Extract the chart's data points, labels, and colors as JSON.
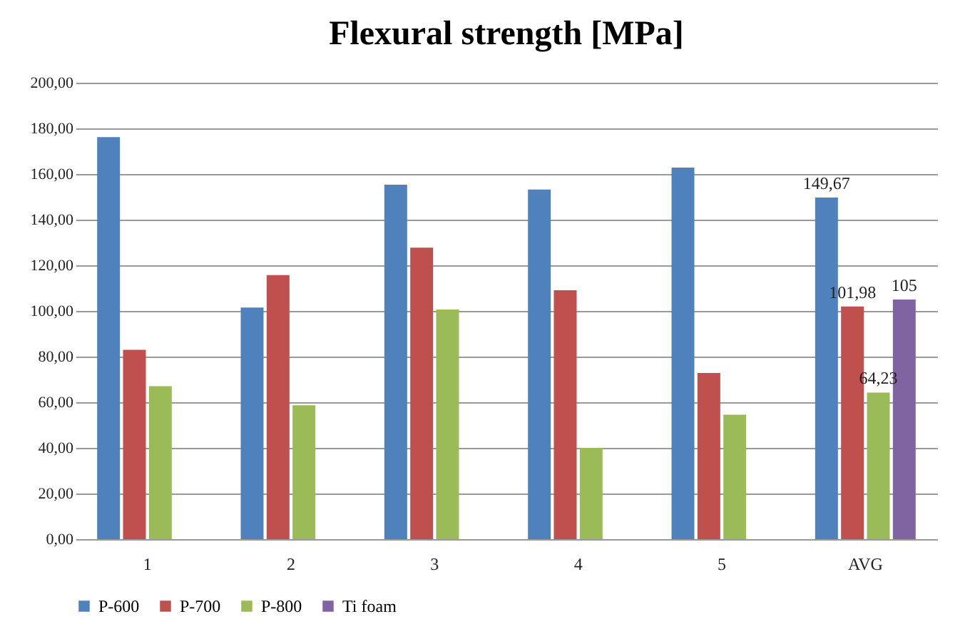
{
  "chart_data": {
    "type": "bar",
    "title": "Flexural strength [MPa]",
    "categories": [
      "1",
      "2",
      "3",
      "4",
      "5",
      "AVG"
    ],
    "series": [
      {
        "name": "P-600",
        "color": "#4f81bd",
        "values": [
          176.2,
          101.5,
          155.3,
          153.2,
          162.8,
          149.67
        ],
        "value_labels": [
          null,
          null,
          null,
          null,
          null,
          "149,67"
        ]
      },
      {
        "name": "P-700",
        "color": "#c0504d",
        "values": [
          83,
          115.7,
          127.7,
          109.1,
          72.8,
          101.98
        ],
        "value_labels": [
          null,
          null,
          null,
          null,
          null,
          "101,98"
        ]
      },
      {
        "name": "P-800",
        "color": "#9bbb59",
        "values": [
          67,
          58.7,
          100.6,
          40,
          54.5,
          64.23
        ],
        "value_labels": [
          null,
          null,
          null,
          null,
          null,
          "64,23"
        ]
      },
      {
        "name": "Ti foam",
        "color": "#8064a2",
        "values": [
          null,
          null,
          null,
          null,
          null,
          105
        ],
        "value_labels": [
          null,
          null,
          null,
          null,
          null,
          "105"
        ]
      }
    ],
    "ylim": [
      0,
      200
    ],
    "yticks": [
      {
        "value": 0,
        "label": "0,00"
      },
      {
        "value": 20,
        "label": "20,00"
      },
      {
        "value": 40,
        "label": "40,00"
      },
      {
        "value": 60,
        "label": "60,00"
      },
      {
        "value": 80,
        "label": "80,00"
      },
      {
        "value": 100,
        "label": "100,00"
      },
      {
        "value": 120,
        "label": "120,00"
      },
      {
        "value": 140,
        "label": "140,00"
      },
      {
        "value": 160,
        "label": "160,00"
      },
      {
        "value": 180,
        "label": "180,00"
      },
      {
        "value": 200,
        "label": "200,00"
      }
    ],
    "grid": "y",
    "legend": "bottom"
  }
}
